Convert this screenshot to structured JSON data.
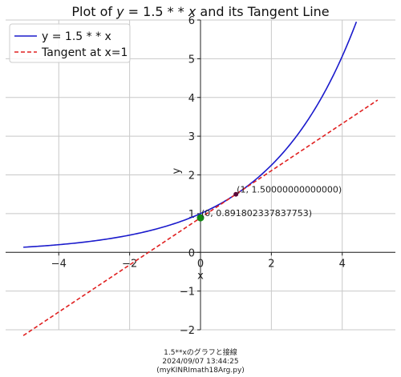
{
  "chart_data": {
    "type": "line",
    "title": "Plot of y = 1.5 * * x and its Tangent Line",
    "xlabel": "x",
    "ylabel": "y",
    "xlim": [
      -5.5,
      5.5
    ],
    "ylim": [
      -2,
      6
    ],
    "xticks": [
      -4,
      -2,
      0,
      2,
      4
    ],
    "xtick_labels": [
      "−4",
      "−2",
      "0",
      "2",
      "4"
    ],
    "yticks": [
      -2,
      -1,
      0,
      1,
      2,
      3,
      4,
      5,
      6
    ],
    "ytick_labels": [
      "−2",
      "−1",
      "0",
      "1",
      "2",
      "3",
      "4",
      "5",
      "6"
    ],
    "grid": true,
    "legend_position": "top-left",
    "series": [
      {
        "name": "y = 1.5 * * x",
        "function": "1.5**x",
        "x_range": [
          -5,
          5
        ],
        "color": "#1a1acc",
        "style": "solid"
      },
      {
        "name": "Tangent at x=1",
        "function": "0.6081977*x + 0.8918023",
        "x_range": [
          -5,
          5
        ],
        "color": "#e02020",
        "style": "dashed"
      }
    ],
    "points": [
      {
        "x": 1,
        "y": 1.5,
        "label": "(1, 1.50000000000000)",
        "color": "#5a0a3a"
      },
      {
        "x": 0,
        "y": 0.891802337837753,
        "label": "(0, 0.891802337837753)",
        "color": "#118811"
      }
    ]
  },
  "footer": {
    "line1": "1.5**xのグラフと接線",
    "line2": "2024/09/07 13:44:25",
    "line3": "(myKINRImath18Arg.py)"
  }
}
